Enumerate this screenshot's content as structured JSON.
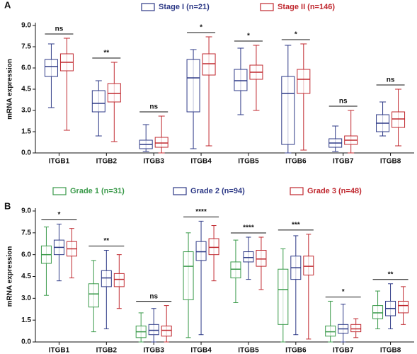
{
  "chart_data": [
    {
      "type": "box",
      "panel_label": "A",
      "ylabel": "mRNA expression",
      "categories": [
        "ITGB1",
        "ITGB2",
        "ITGB3",
        "ITGB4",
        "ITGB5",
        "ITGB6",
        "ITGB7",
        "ITGB8"
      ],
      "ylim": [
        0,
        9
      ],
      "yticks": [
        {
          "value": 0,
          "label": "0.0"
        },
        1.5,
        {
          "value": 3,
          "label": "3.0"
        },
        4.5,
        {
          "value": 6,
          "label": "6.0"
        },
        7.5,
        {
          "value": 9,
          "label": "9.0"
        }
      ],
      "annotations": [
        "ns",
        "**",
        "ns",
        "*",
        "*",
        "*",
        "ns",
        "ns"
      ],
      "series": [
        {
          "name": "Stage I (n=21)",
          "color": "#2e3a87",
          "values": [
            [
              3.2,
              5.4,
              6.1,
              6.6,
              7.7
            ],
            [
              1.2,
              2.9,
              3.5,
              4.4,
              5.1
            ],
            [
              0.1,
              0.3,
              0.6,
              0.9,
              2.0
            ],
            [
              0.3,
              2.9,
              5.3,
              6.6,
              7.3
            ],
            [
              2.7,
              4.4,
              5.1,
              5.9,
              7.4
            ],
            [
              0,
              0.6,
              4.2,
              5.4,
              7.6
            ],
            [
              0.1,
              0.4,
              0.7,
              1.0,
              1.9
            ],
            [
              1.2,
              1.5,
              2.1,
              2.7,
              3.6
            ]
          ]
        },
        {
          "name": "Stage II (n=146)",
          "color": "#c0282f",
          "values": [
            [
              1.6,
              5.8,
              6.4,
              7.0,
              8.1
            ],
            [
              0.8,
              3.6,
              4.2,
              4.9,
              6.4
            ],
            [
              0,
              0.4,
              0.7,
              1.1,
              2.6
            ],
            [
              0.5,
              5.5,
              6.3,
              7.0,
              8.2
            ],
            [
              3.0,
              5.2,
              5.7,
              6.2,
              7.6
            ],
            [
              0.2,
              4.2,
              5.2,
              5.9,
              7.7
            ],
            [
              0,
              0.6,
              0.9,
              1.2,
              3.0
            ],
            [
              0.5,
              1.8,
              2.4,
              2.9,
              4.5
            ]
          ]
        }
      ]
    },
    {
      "type": "box",
      "panel_label": "B",
      "ylabel": "mRNA expression",
      "categories": [
        "ITGB1",
        "ITGB2",
        "ITGB3",
        "ITGB4",
        "ITGB5",
        "ITGB6",
        "ITGB7",
        "ITGB8"
      ],
      "ylim": [
        0,
        9
      ],
      "yticks": [
        {
          "value": 0,
          "label": "0.0"
        },
        1.5,
        {
          "value": 3,
          "label": "3.0"
        },
        4.5,
        {
          "value": 6,
          "label": "6.0"
        },
        7.5,
        {
          "value": 9,
          "label": "9.0"
        }
      ],
      "annotations": [
        "*",
        "**",
        "ns",
        "****",
        "****",
        "***",
        "*",
        "**"
      ],
      "series": [
        {
          "name": "Grade 1 (n=31)",
          "color": "#3a9a4a",
          "values": [
            [
              3.2,
              5.4,
              6.0,
              6.6,
              7.9
            ],
            [
              0.7,
              2.4,
              3.3,
              4.0,
              5.6
            ],
            [
              0,
              0.3,
              0.7,
              1.1,
              2.0
            ],
            [
              0.3,
              2.9,
              5.2,
              6.2,
              7.5
            ],
            [
              2.7,
              4.4,
              5.0,
              5.5,
              7.0
            ],
            [
              0,
              1.2,
              3.6,
              5.0,
              6.4
            ],
            [
              0,
              0.4,
              0.7,
              1.1,
              2.8
            ],
            [
              0.9,
              1.6,
              2.0,
              2.5,
              3.5
            ]
          ]
        },
        {
          "name": "Grade 2 (n=94)",
          "color": "#2e3a87",
          "values": [
            [
              4.2,
              6.0,
              6.5,
              7.0,
              8.1
            ],
            [
              0.9,
              3.8,
              4.4,
              4.9,
              6.3
            ],
            [
              0,
              0.5,
              0.8,
              1.2,
              2.3
            ],
            [
              0.5,
              5.6,
              6.2,
              6.9,
              8.3
            ],
            [
              4.3,
              5.5,
              5.8,
              6.2,
              7.2
            ],
            [
              0.5,
              4.3,
              5.1,
              5.9,
              7.3
            ],
            [
              0,
              0.6,
              0.9,
              1.2,
              2.6
            ],
            [
              0.9,
              1.8,
              2.3,
              2.8,
              4.0
            ]
          ]
        },
        {
          "name": "Grade 3 (n=48)",
          "color": "#c0282f",
          "values": [
            [
              4.4,
              5.9,
              6.4,
              6.9,
              7.8
            ],
            [
              2.3,
              3.8,
              4.3,
              4.7,
              6.0
            ],
            [
              0,
              0.4,
              0.8,
              1.1,
              2.5
            ],
            [
              4.2,
              6.0,
              6.5,
              7.1,
              8.0
            ],
            [
              3.6,
              5.2,
              5.7,
              6.3,
              7.2
            ],
            [
              0.2,
              4.6,
              5.2,
              5.9,
              7.4
            ],
            [
              0.3,
              0.7,
              0.9,
              1.2,
              1.6
            ],
            [
              1.2,
              2.0,
              2.5,
              2.8,
              3.8
            ]
          ]
        }
      ]
    }
  ]
}
